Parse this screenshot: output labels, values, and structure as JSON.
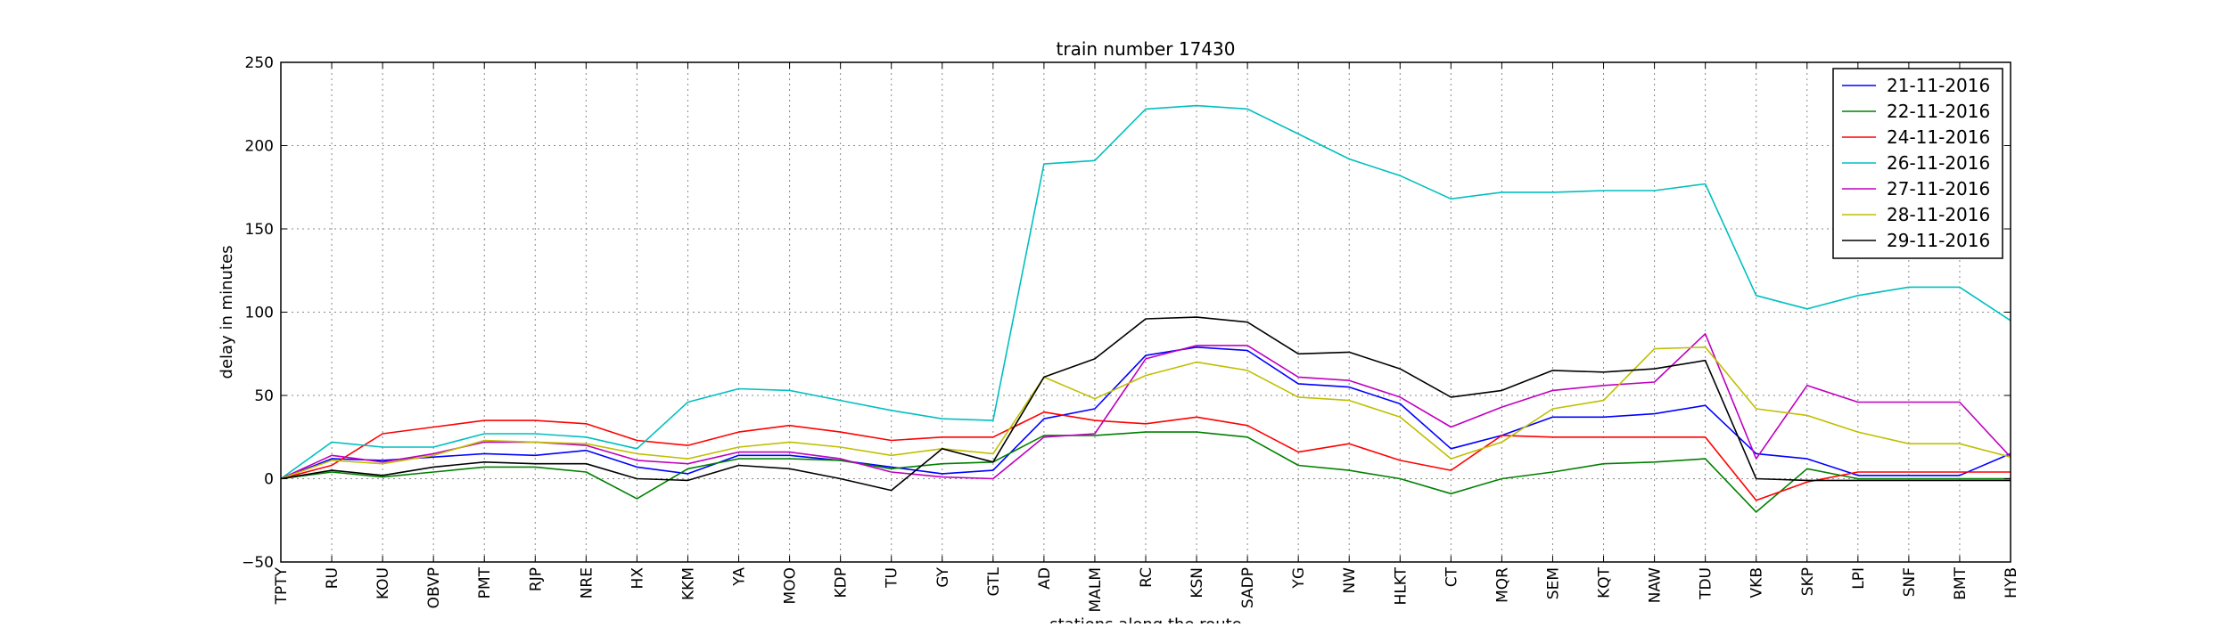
{
  "chart_data": {
    "type": "line",
    "title": "train number 17430",
    "xlabel": "stations along the route",
    "ylabel": "delay in minutes",
    "ylim": [
      -50,
      250
    ],
    "yticks": [
      -50,
      0,
      50,
      100,
      150,
      200,
      250
    ],
    "grid": true,
    "legend_position": "top-right",
    "categories": [
      "TPTY",
      "RU",
      "KOU",
      "OBVP",
      "PMT",
      "RJP",
      "NRE",
      "HX",
      "KKM",
      "YA",
      "MOO",
      "KDP",
      "TU",
      "GY",
      "GTL",
      "AD",
      "MALM",
      "RC",
      "KSN",
      "SADP",
      "YG",
      "NW",
      "HLKT",
      "CT",
      "MQR",
      "SEM",
      "KQT",
      "NAW",
      "TDU",
      "VKB",
      "SKP",
      "LPI",
      "SNF",
      "BMT",
      "HYB"
    ],
    "series": [
      {
        "name": "21-11-2016",
        "color": "#0000ff",
        "values": [
          0,
          12,
          11,
          13,
          15,
          14,
          17,
          7,
          3,
          14,
          14,
          11,
          7,
          3,
          5,
          36,
          42,
          74,
          79,
          77,
          57,
          55,
          45,
          18,
          26,
          37,
          37,
          39,
          44,
          15,
          12,
          2,
          2,
          2,
          15
        ]
      },
      {
        "name": "22-11-2016",
        "color": "#008000",
        "values": [
          0,
          4,
          1,
          4,
          7,
          7,
          4,
          -12,
          6,
          12,
          12,
          11,
          6,
          9,
          10,
          26,
          26,
          28,
          28,
          25,
          8,
          5,
          0,
          -9,
          0,
          4,
          9,
          10,
          12,
          -20,
          6,
          0,
          0,
          0,
          0
        ]
      },
      {
        "name": "24-11-2016",
        "color": "#ff0000",
        "values": [
          0,
          8,
          27,
          31,
          35,
          35,
          33,
          23,
          20,
          28,
          32,
          28,
          23,
          25,
          25,
          40,
          35,
          33,
          37,
          32,
          16,
          21,
          11,
          5,
          26,
          25,
          25,
          25,
          25,
          -13,
          -2,
          4,
          4,
          4,
          4
        ]
      },
      {
        "name": "26-11-2016",
        "color": "#00bfbf",
        "values": [
          0,
          22,
          19,
          19,
          27,
          27,
          25,
          18,
          46,
          54,
          53,
          47,
          41,
          36,
          35,
          189,
          191,
          222,
          224,
          222,
          207,
          192,
          182,
          168,
          172,
          172,
          173,
          173,
          177,
          110,
          102,
          110,
          115,
          115,
          95
        ]
      },
      {
        "name": "27-11-2016",
        "color": "#bf00bf",
        "values": [
          0,
          14,
          10,
          15,
          22,
          22,
          20,
          11,
          9,
          16,
          16,
          12,
          4,
          1,
          0,
          25,
          27,
          72,
          80,
          80,
          61,
          59,
          49,
          31,
          43,
          53,
          56,
          58,
          87,
          12,
          56,
          46,
          46,
          46,
          13
        ]
      },
      {
        "name": "28-11-2016",
        "color": "#bfbf00",
        "values": [
          0,
          11,
          9,
          14,
          23,
          22,
          21,
          15,
          12,
          19,
          22,
          19,
          14,
          18,
          15,
          61,
          48,
          62,
          70,
          65,
          49,
          47,
          37,
          12,
          22,
          42,
          47,
          78,
          79,
          42,
          38,
          28,
          21,
          21,
          13
        ]
      },
      {
        "name": "29-11-2016",
        "color": "#000000",
        "values": [
          0,
          5,
          2,
          7,
          10,
          9,
          9,
          0,
          -1,
          8,
          6,
          0,
          -7,
          18,
          10,
          61,
          72,
          96,
          97,
          94,
          75,
          76,
          66,
          49,
          53,
          65,
          64,
          66,
          71,
          0,
          -1,
          -1,
          -1,
          -1,
          -1
        ]
      }
    ]
  }
}
